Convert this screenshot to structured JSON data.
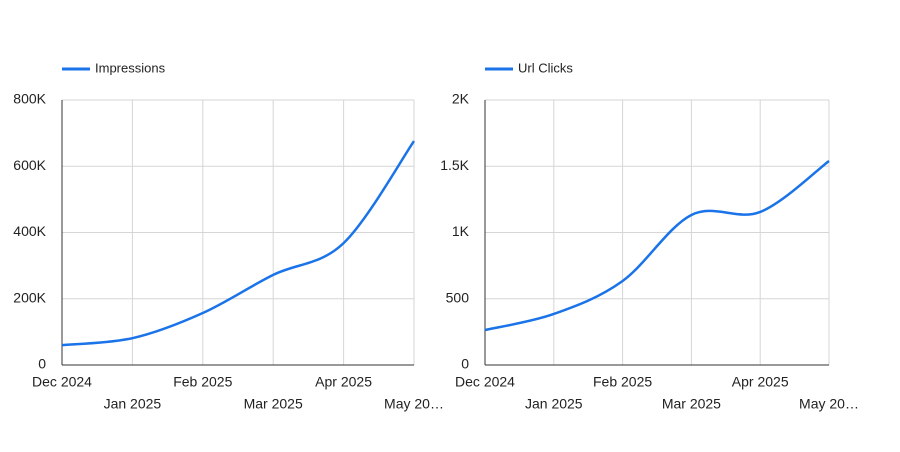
{
  "chart_data": [
    {
      "type": "line",
      "categories": [
        "Dec 2024",
        "Jan 2025",
        "Feb 2025",
        "Mar 2025",
        "Apr 2025",
        "May 20…"
      ],
      "series": [
        {
          "name": "Impressions",
          "color": "#1a73e8",
          "values": [
            60000,
            81000,
            157000,
            272000,
            368000,
            676000
          ]
        }
      ],
      "ylim": [
        0,
        800000
      ],
      "yticks": [
        0,
        {
          "value": 200000,
          "label": "200K"
        },
        {
          "value": 400000,
          "label": "400K"
        },
        {
          "value": 600000,
          "label": "600K"
        },
        {
          "value": 800000,
          "label": "800K"
        }
      ],
      "grid": true,
      "legend": "top-left"
    },
    {
      "type": "line",
      "categories": [
        "Dec 2024",
        "Jan 2025",
        "Feb 2025",
        "Mar 2025",
        "Apr 2025",
        "May 20…"
      ],
      "series": [
        {
          "name": "Url Clicks",
          "color": "#1a73e8",
          "values": [
            264,
            385,
            634,
            1132,
            1155,
            1540
          ]
        }
      ],
      "ylim": [
        0,
        2000
      ],
      "yticks": [
        0,
        500,
        {
          "value": 1000,
          "label": "1K"
        },
        {
          "value": 1500,
          "label": "1.5K"
        },
        {
          "value": 2000,
          "label": "2K"
        }
      ],
      "grid": true,
      "legend": "top-left"
    }
  ]
}
